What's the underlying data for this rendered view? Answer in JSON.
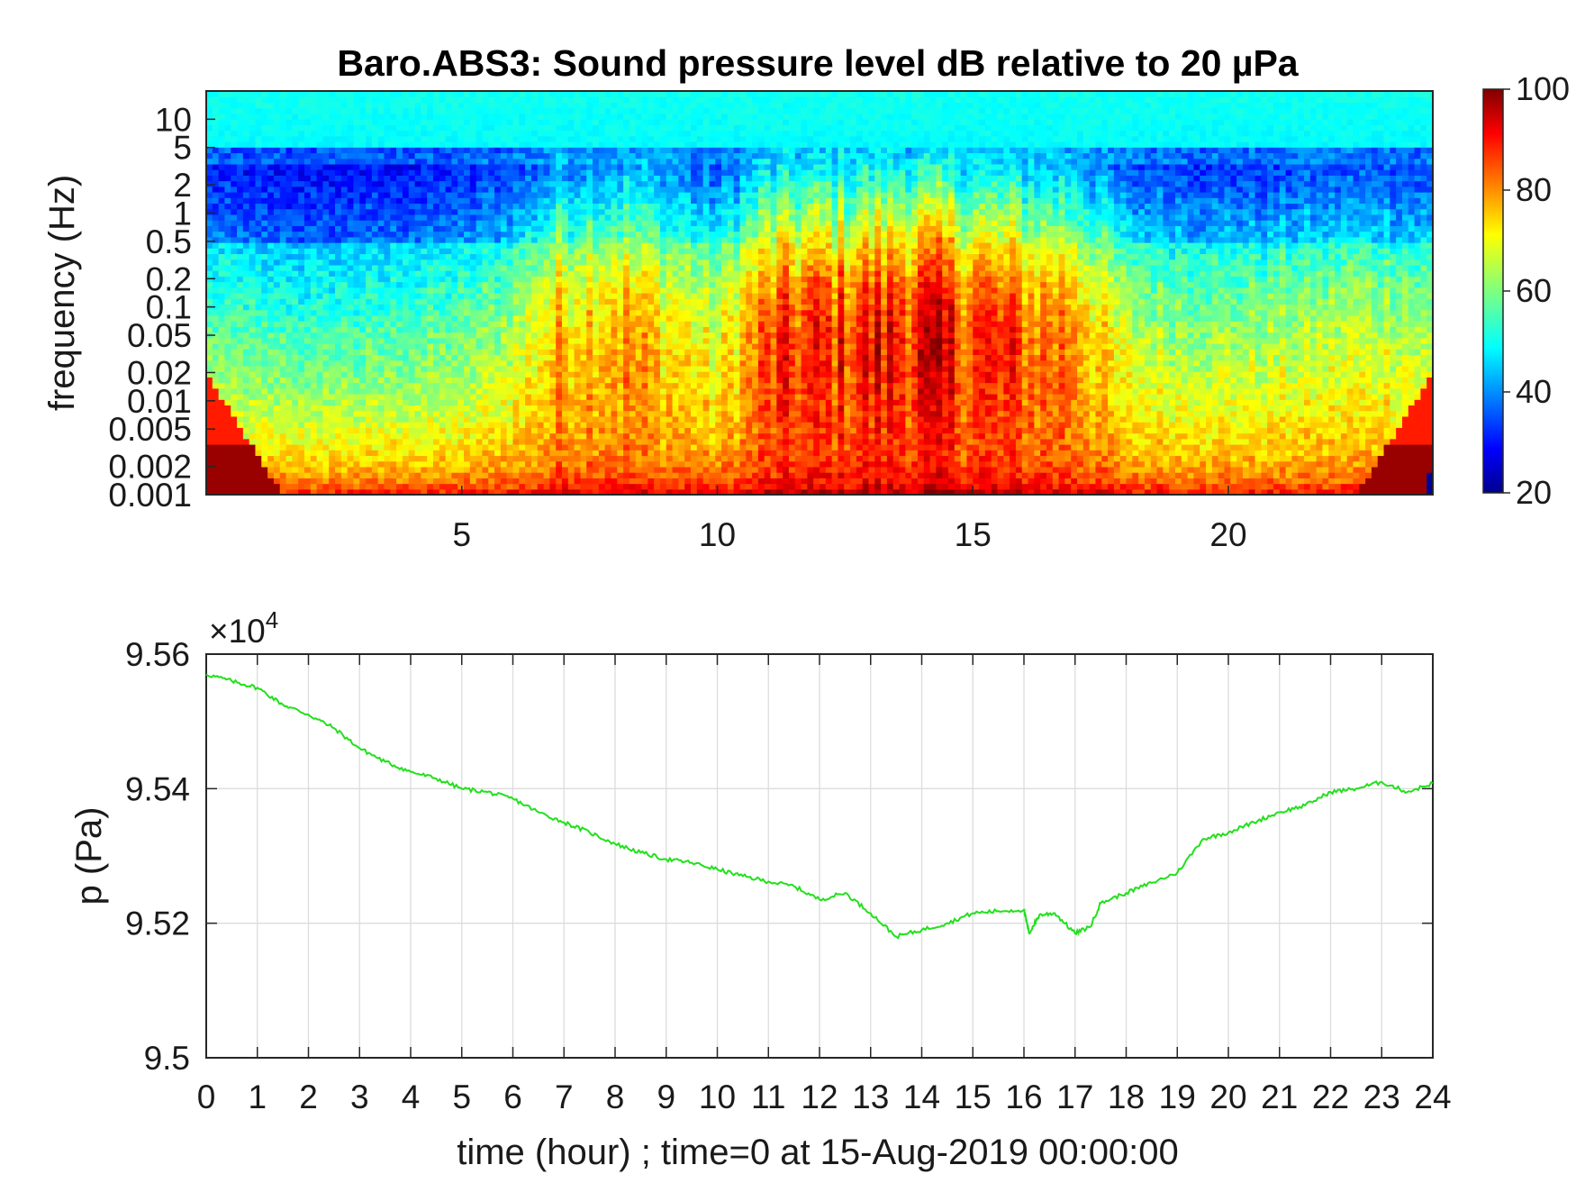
{
  "chart_data": [
    {
      "type": "heatmap",
      "title": "Baro.ABS3: Sound pressure level dB relative to 20 µPa",
      "ylabel": "frequency (Hz)",
      "xlabel": "",
      "xlim": [
        0,
        24
      ],
      "ylim": [
        0.001,
        20
      ],
      "yscale": "log",
      "x_ticks": [
        "5",
        "10",
        "15",
        "20"
      ],
      "x_tick_values": [
        5,
        10,
        15,
        20
      ],
      "y_ticks": [
        "10",
        "5",
        "2",
        "1",
        "0.5",
        "0.2",
        "0.1",
        "0.05",
        "0.02",
        "0.01",
        "0.005",
        "0.002",
        "0.001"
      ],
      "y_tick_values": [
        10,
        5,
        2,
        1,
        0.5,
        0.2,
        0.1,
        0.05,
        0.02,
        0.01,
        0.005,
        0.002,
        0.001
      ],
      "colormap": "jet",
      "colorbar": {
        "range": [
          20,
          100
        ],
        "ticks": [
          "100",
          "80",
          "60",
          "40",
          "20"
        ],
        "tick_values": [
          100,
          80,
          60,
          40,
          20
        ]
      },
      "activity_by_hour": {
        "hours": [
          0,
          1,
          2,
          3,
          4,
          5,
          6,
          7,
          8,
          9,
          10,
          11,
          12,
          13,
          14,
          15,
          16,
          17,
          18,
          19,
          20,
          21,
          22,
          23,
          24
        ],
        "relative_level": [
          0.18,
          0.12,
          0.1,
          0.12,
          0.15,
          0.18,
          0.32,
          0.62,
          0.68,
          0.55,
          0.4,
          0.82,
          0.88,
          0.94,
          1.0,
          0.9,
          0.8,
          0.74,
          0.35,
          0.3,
          0.28,
          0.3,
          0.34,
          0.38,
          0.3
        ]
      }
    },
    {
      "type": "line",
      "title": "",
      "xlabel": "time (hour) ; time=0 at 15-Aug-2019 00:00:00",
      "ylabel": "p (Pa)",
      "xlim": [
        0,
        24
      ],
      "ylim": [
        95000,
        95600
      ],
      "y_multiplier": "×10",
      "y_multiplier_exponent": "4",
      "x_ticks": [
        "0",
        "1",
        "2",
        "3",
        "4",
        "5",
        "6",
        "7",
        "8",
        "9",
        "10",
        "11",
        "12",
        "13",
        "14",
        "15",
        "16",
        "17",
        "18",
        "19",
        "20",
        "21",
        "22",
        "23",
        "24"
      ],
      "y_ticks": [
        "9.56",
        "9.54",
        "9.52",
        "9.5"
      ],
      "y_tick_values": [
        95600,
        95400,
        95200,
        95000
      ],
      "grid": true,
      "series": [
        {
          "color": "#22e01c",
          "x": [
            0,
            0.5,
            1,
            1.5,
            2,
            2.5,
            3,
            3.5,
            4,
            4.5,
            5,
            5.5,
            6,
            6.5,
            7,
            7.5,
            8,
            8.5,
            9,
            9.5,
            10,
            10.5,
            11,
            11.5,
            12,
            12.5,
            13,
            13.5,
            14,
            14.5,
            15,
            15.5,
            16,
            16.1,
            16.3,
            16.6,
            17,
            17.3,
            17.5,
            18,
            18.5,
            19,
            19.5,
            20,
            20.5,
            21,
            21.5,
            22,
            22.5,
            23,
            23.5,
            24
          ],
          "y": [
            95570,
            95560,
            95550,
            95525,
            95510,
            95490,
            95460,
            95440,
            95425,
            95415,
            95400,
            95395,
            95385,
            95365,
            95350,
            95335,
            95318,
            95305,
            95295,
            95290,
            95280,
            95270,
            95262,
            95255,
            95235,
            95245,
            95215,
            95180,
            95190,
            95200,
            95215,
            95218,
            95220,
            95185,
            95212,
            95215,
            95185,
            95195,
            95230,
            95245,
            95260,
            95275,
            95325,
            95335,
            95350,
            95365,
            95375,
            95395,
            95400,
            95410,
            95395,
            95408
          ]
        }
      ]
    }
  ]
}
